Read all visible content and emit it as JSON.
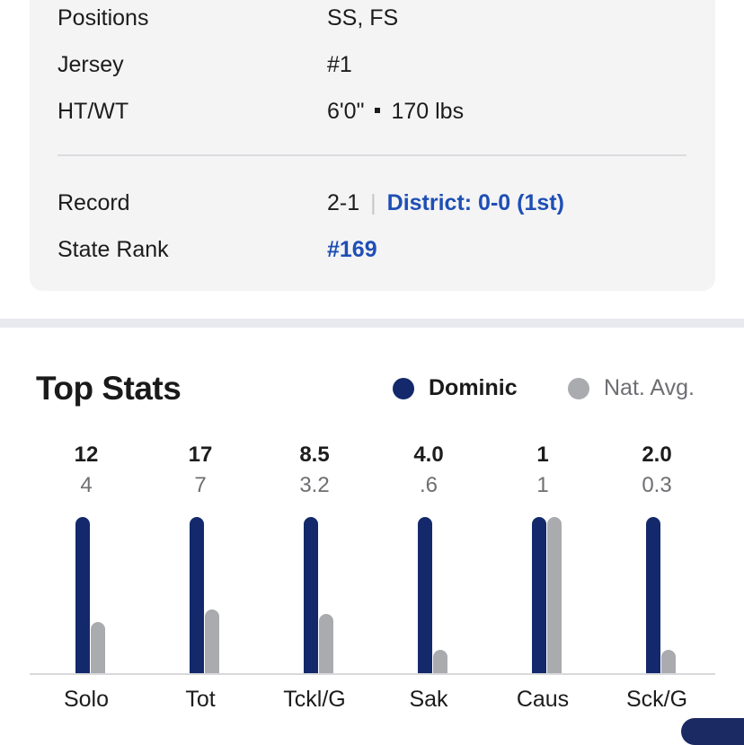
{
  "player_info": {
    "positions": {
      "label": "Positions",
      "value": "SS, FS"
    },
    "jersey": {
      "label": "Jersey",
      "value": "#1"
    },
    "ht_wt": {
      "label": "HT/WT",
      "height": "6'0\"",
      "weight": "170 lbs"
    },
    "record": {
      "label": "Record",
      "value": "2-1",
      "district": "District: 0-0 (1st)"
    },
    "state_rank": {
      "label": "State Rank",
      "value": "#169"
    }
  },
  "top_stats": {
    "title": "Top Stats",
    "legend": [
      {
        "name": "Dominic",
        "color": "#13296b"
      },
      {
        "name": "Nat. Avg.",
        "color": "#a9abae"
      }
    ]
  },
  "chart_data": {
    "type": "bar",
    "categories": [
      "Solo",
      "Tot",
      "Tckl/G",
      "Sak",
      "Caus",
      "Sck/G"
    ],
    "series": [
      {
        "name": "Dominic",
        "values": [
          "12",
          "17",
          "8.5",
          "4.0",
          "1",
          "2.0"
        ],
        "relative": [
          1,
          1,
          1,
          1,
          1,
          1
        ]
      },
      {
        "name": "Nat. Avg.",
        "values": [
          "4",
          "7",
          "3.2",
          ".6",
          "1",
          "0.3"
        ],
        "relative": [
          0.33,
          0.41,
          0.38,
          0.15,
          1,
          0.15
        ]
      }
    ]
  }
}
